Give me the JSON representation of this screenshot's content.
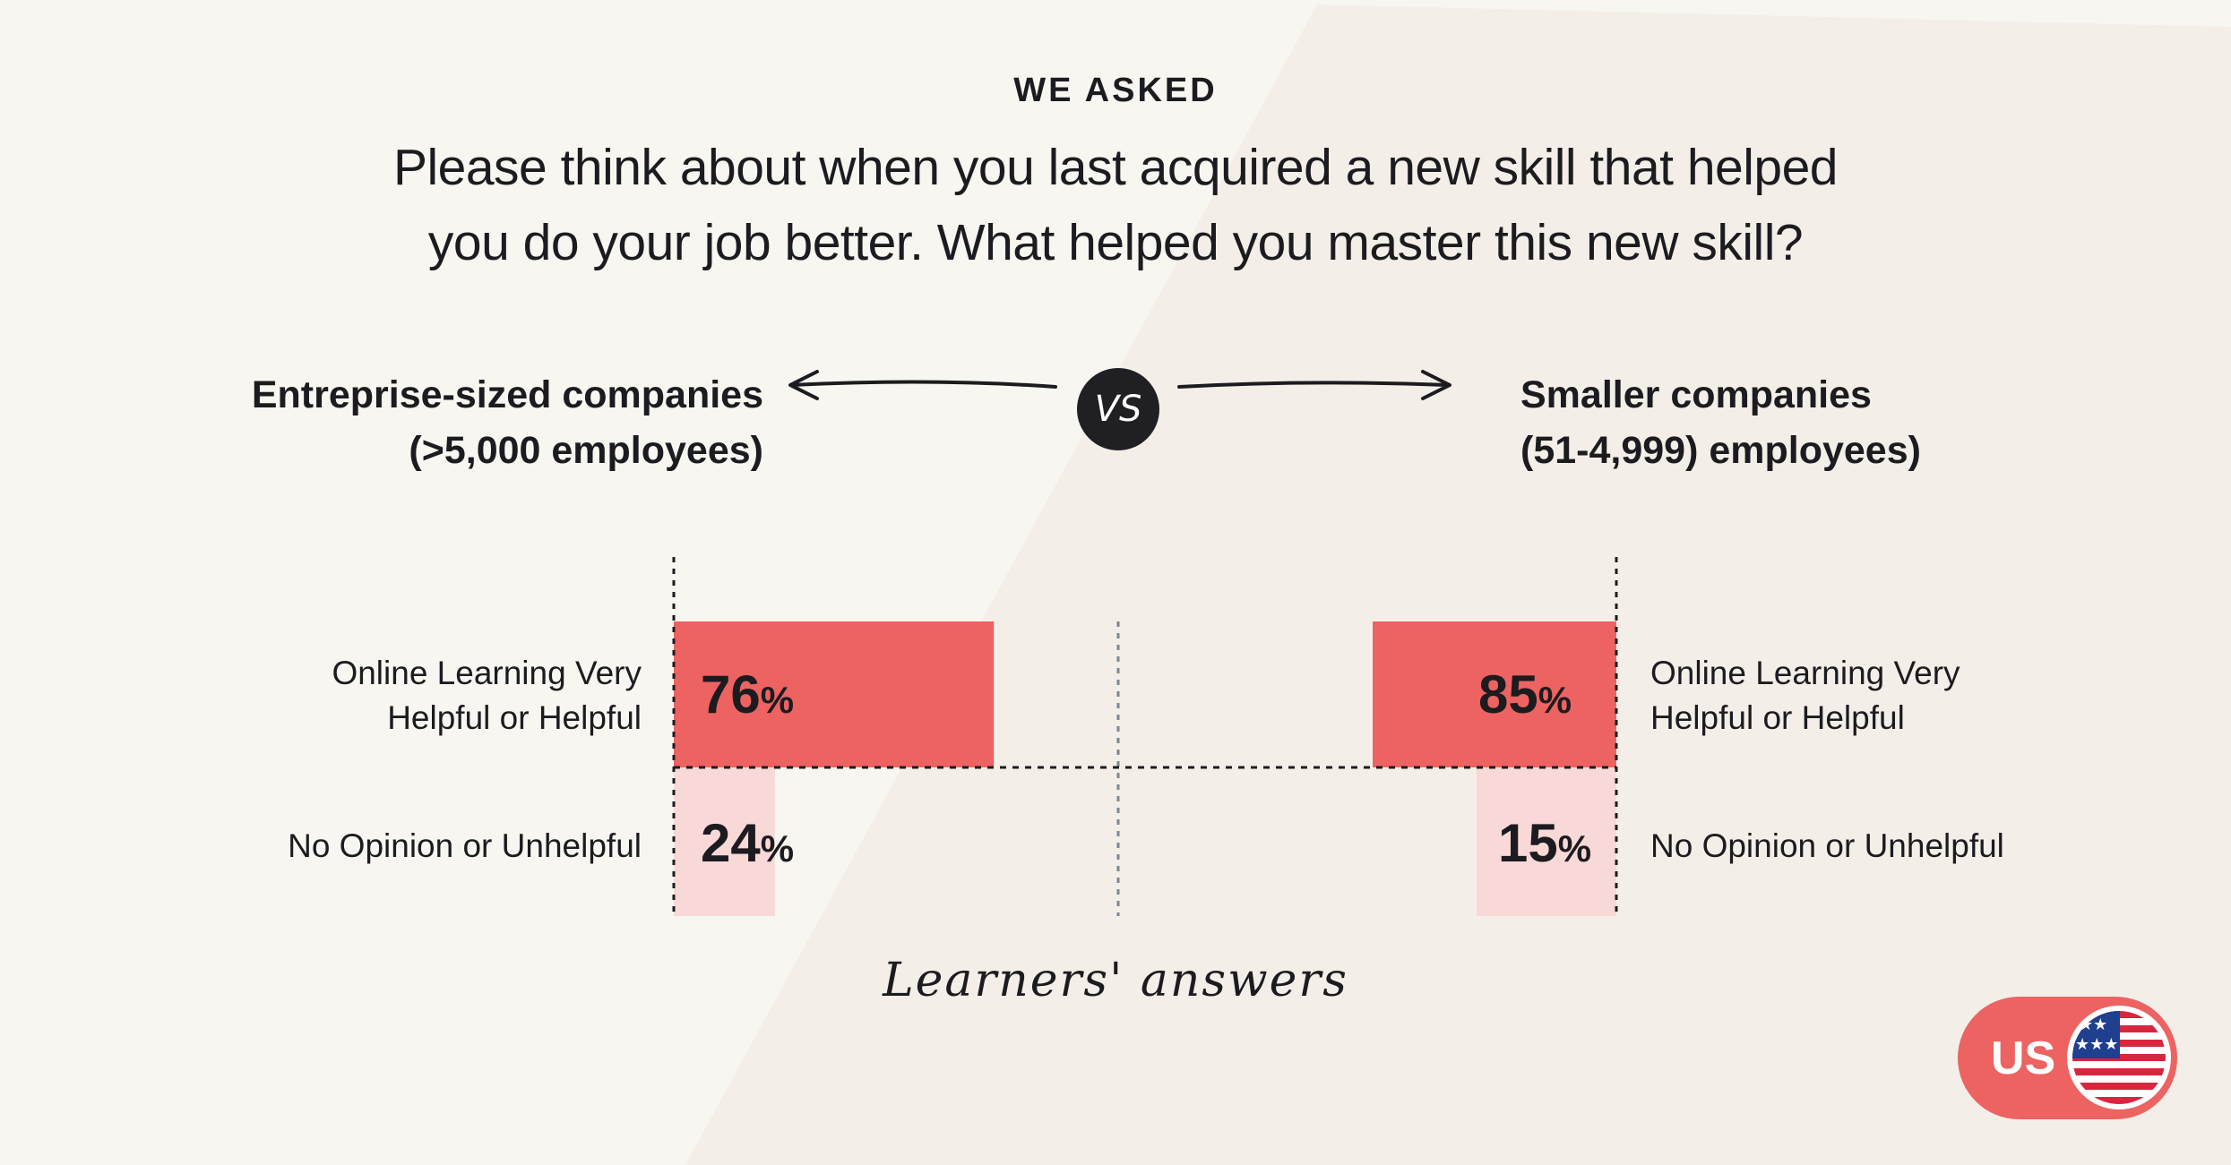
{
  "header": {
    "eyebrow": "WE ASKED",
    "question_line1": "Please think about when you last acquired a new skill that helped",
    "question_line2": "you do your job better. What helped you master this new skill?"
  },
  "comparison": {
    "left_title_line1": "Entreprise-sized companies",
    "left_title_line2": "(>5,000 employees)",
    "vs": "VS",
    "right_title_line1": "Smaller companies",
    "right_title_line2": "(51-4,999) employees)"
  },
  "labels": {
    "positive_line1": "Online Learning Very",
    "positive_line2": "Helpful or Helpful",
    "negative": "No Opinion or Unhelpful",
    "percent_sign": "%"
  },
  "caption": "Learners' answers",
  "badge": {
    "country": "US"
  },
  "colors": {
    "background": "#f8f6f1",
    "positive_bar": "#ec6362",
    "negative_bar": "#f8d9d7",
    "badge": "#ec6362"
  },
  "chart_data": {
    "type": "bar",
    "orientation": "horizontal-diverging",
    "unit": "%",
    "xlim": [
      0,
      100
    ],
    "categories": [
      "Online Learning Very Helpful or Helpful",
      "No Opinion or Unhelpful"
    ],
    "series": [
      {
        "name": "Entreprise-sized companies (>5,000 employees)",
        "values": [
          76,
          24
        ]
      },
      {
        "name": "Smaller companies (51-4,999) employees)",
        "values": [
          85,
          15
        ]
      }
    ]
  }
}
